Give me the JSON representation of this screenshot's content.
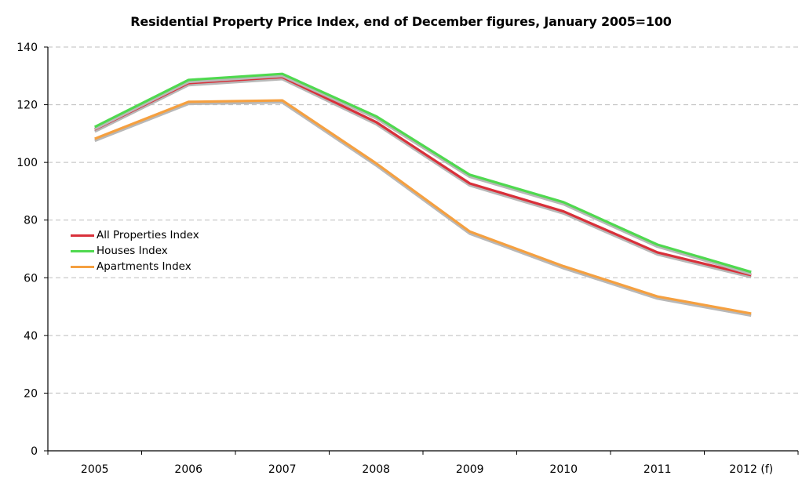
{
  "chart_data": {
    "type": "line",
    "title": "Residential Property Price Index, end of December figures, January 2005=100",
    "xlabel": "",
    "ylabel": "",
    "categories": [
      "2005",
      "2006",
      "2007",
      "2008",
      "2009",
      "2010",
      "2011",
      "2012 (f)"
    ],
    "ylim": [
      0,
      140
    ],
    "yticks": [
      0,
      20,
      40,
      60,
      80,
      100,
      120,
      140
    ],
    "grid": true,
    "legend_position": "center-left",
    "series": [
      {
        "name": "All Properties Index",
        "color": "#d9303a",
        "values": [
          111.4,
          127.5,
          129.6,
          114.0,
          92.7,
          83.0,
          68.8,
          60.9
        ]
      },
      {
        "name": "Houses Index",
        "color": "#4fd94f",
        "values": [
          112.3,
          128.6,
          130.7,
          116.0,
          95.7,
          86.2,
          71.5,
          62.0
        ]
      },
      {
        "name": "Apartments Index",
        "color": "#f5a040",
        "values": [
          108.2,
          121.0,
          121.5,
          99.7,
          76.0,
          64.0,
          53.5,
          47.6
        ]
      }
    ]
  }
}
